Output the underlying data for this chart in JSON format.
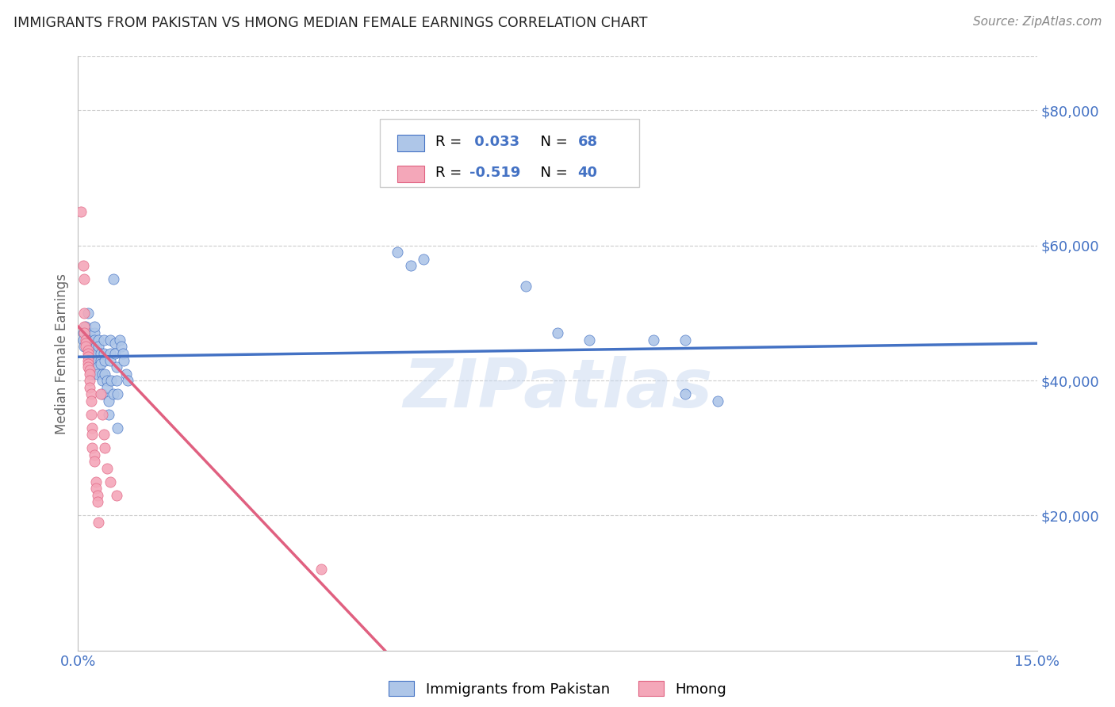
{
  "title": "IMMIGRANTS FROM PAKISTAN VS HMONG MEDIAN FEMALE EARNINGS CORRELATION CHART",
  "source": "Source: ZipAtlas.com",
  "ylabel": "Median Female Earnings",
  "x_min": 0.0,
  "x_max": 0.15,
  "y_min": 0,
  "y_max": 88000,
  "y_ticks": [
    0,
    20000,
    40000,
    60000,
    80000
  ],
  "y_tick_labels": [
    "",
    "$20,000",
    "$40,000",
    "$60,000",
    "$80,000"
  ],
  "x_ticks": [
    0.0,
    0.03,
    0.06,
    0.09,
    0.12,
    0.15
  ],
  "x_tick_labels": [
    "0.0%",
    "",
    "",
    "",
    "",
    "15.0%"
  ],
  "legend_r_pak": "0.033",
  "legend_n_pak": "68",
  "legend_r_hmong": "-0.519",
  "legend_n_hmong": "40",
  "color_pakistan": "#aec6e8",
  "color_hmong": "#f4a7b9",
  "line_color_pakistan": "#4472c4",
  "line_color_hmong": "#e06080",
  "watermark": "ZIPatlas",
  "background_color": "#ffffff",
  "grid_color": "#cccccc",
  "axis_label_color": "#4472c4",
  "title_color": "#222222",
  "source_color": "#888888",
  "pakistan_scatter": [
    [
      0.0008,
      47000
    ],
    [
      0.0008,
      46000
    ],
    [
      0.001,
      45000
    ],
    [
      0.0012,
      48000
    ],
    [
      0.0015,
      46500
    ],
    [
      0.0015,
      45500
    ],
    [
      0.0015,
      50000
    ],
    [
      0.0018,
      44000
    ],
    [
      0.0018,
      43000
    ],
    [
      0.0018,
      47000
    ],
    [
      0.002,
      46000
    ],
    [
      0.002,
      45000
    ],
    [
      0.002,
      44000
    ],
    [
      0.0022,
      43500
    ],
    [
      0.0022,
      42500
    ],
    [
      0.0022,
      41000
    ],
    [
      0.0025,
      47000
    ],
    [
      0.0025,
      48000
    ],
    [
      0.0025,
      46000
    ],
    [
      0.0028,
      45000
    ],
    [
      0.0028,
      44000
    ],
    [
      0.003,
      43000
    ],
    [
      0.003,
      42000
    ],
    [
      0.003,
      41000
    ],
    [
      0.0032,
      46000
    ],
    [
      0.0032,
      45000
    ],
    [
      0.0035,
      44000
    ],
    [
      0.0035,
      43000
    ],
    [
      0.0035,
      42500
    ],
    [
      0.0038,
      41000
    ],
    [
      0.0038,
      40000
    ],
    [
      0.0038,
      38000
    ],
    [
      0.004,
      46000
    ],
    [
      0.004,
      44000
    ],
    [
      0.0042,
      43000
    ],
    [
      0.0042,
      41000
    ],
    [
      0.0045,
      40000
    ],
    [
      0.0045,
      39000
    ],
    [
      0.0048,
      37000
    ],
    [
      0.0048,
      35000
    ],
    [
      0.005,
      46000
    ],
    [
      0.005,
      44000
    ],
    [
      0.005,
      43000
    ],
    [
      0.0052,
      40000
    ],
    [
      0.0055,
      38000
    ],
    [
      0.0055,
      55000
    ],
    [
      0.0058,
      45500
    ],
    [
      0.0058,
      44000
    ],
    [
      0.006,
      42000
    ],
    [
      0.006,
      40000
    ],
    [
      0.0062,
      38000
    ],
    [
      0.0062,
      33000
    ],
    [
      0.0065,
      46000
    ],
    [
      0.0068,
      45000
    ],
    [
      0.007,
      44000
    ],
    [
      0.0072,
      43000
    ],
    [
      0.0075,
      41000
    ],
    [
      0.0078,
      40000
    ],
    [
      0.05,
      59000
    ],
    [
      0.052,
      57000
    ],
    [
      0.054,
      58000
    ],
    [
      0.07,
      54000
    ],
    [
      0.075,
      47000
    ],
    [
      0.08,
      46000
    ],
    [
      0.09,
      46000
    ],
    [
      0.095,
      46000
    ],
    [
      0.095,
      38000
    ],
    [
      0.1,
      37000
    ]
  ],
  "hmong_scatter": [
    [
      0.0005,
      65000
    ],
    [
      0.0008,
      57000
    ],
    [
      0.001,
      55000
    ],
    [
      0.001,
      50000
    ],
    [
      0.001,
      48000
    ],
    [
      0.001,
      47000
    ],
    [
      0.0012,
      46000
    ],
    [
      0.0012,
      45500
    ],
    [
      0.0012,
      45000
    ],
    [
      0.0015,
      44500
    ],
    [
      0.0015,
      44000
    ],
    [
      0.0015,
      43500
    ],
    [
      0.0015,
      43000
    ],
    [
      0.0015,
      42500
    ],
    [
      0.0015,
      42000
    ],
    [
      0.0018,
      41500
    ],
    [
      0.0018,
      41000
    ],
    [
      0.0018,
      40000
    ],
    [
      0.0018,
      39000
    ],
    [
      0.002,
      38000
    ],
    [
      0.002,
      37000
    ],
    [
      0.002,
      35000
    ],
    [
      0.0022,
      33000
    ],
    [
      0.0022,
      32000
    ],
    [
      0.0022,
      30000
    ],
    [
      0.0025,
      29000
    ],
    [
      0.0025,
      28000
    ],
    [
      0.0028,
      25000
    ],
    [
      0.0028,
      24000
    ],
    [
      0.003,
      23000
    ],
    [
      0.003,
      22000
    ],
    [
      0.0032,
      19000
    ],
    [
      0.0035,
      38000
    ],
    [
      0.0038,
      35000
    ],
    [
      0.004,
      32000
    ],
    [
      0.0042,
      30000
    ],
    [
      0.0045,
      27000
    ],
    [
      0.005,
      25000
    ],
    [
      0.006,
      23000
    ],
    [
      0.038,
      12000
    ]
  ],
  "pak_trendline_x": [
    0.0,
    0.15
  ],
  "pak_trendline_y": [
    43500,
    45500
  ],
  "hmong_trendline_x": [
    0.0,
    0.048
  ],
  "hmong_trendline_y": [
    48000,
    0
  ]
}
